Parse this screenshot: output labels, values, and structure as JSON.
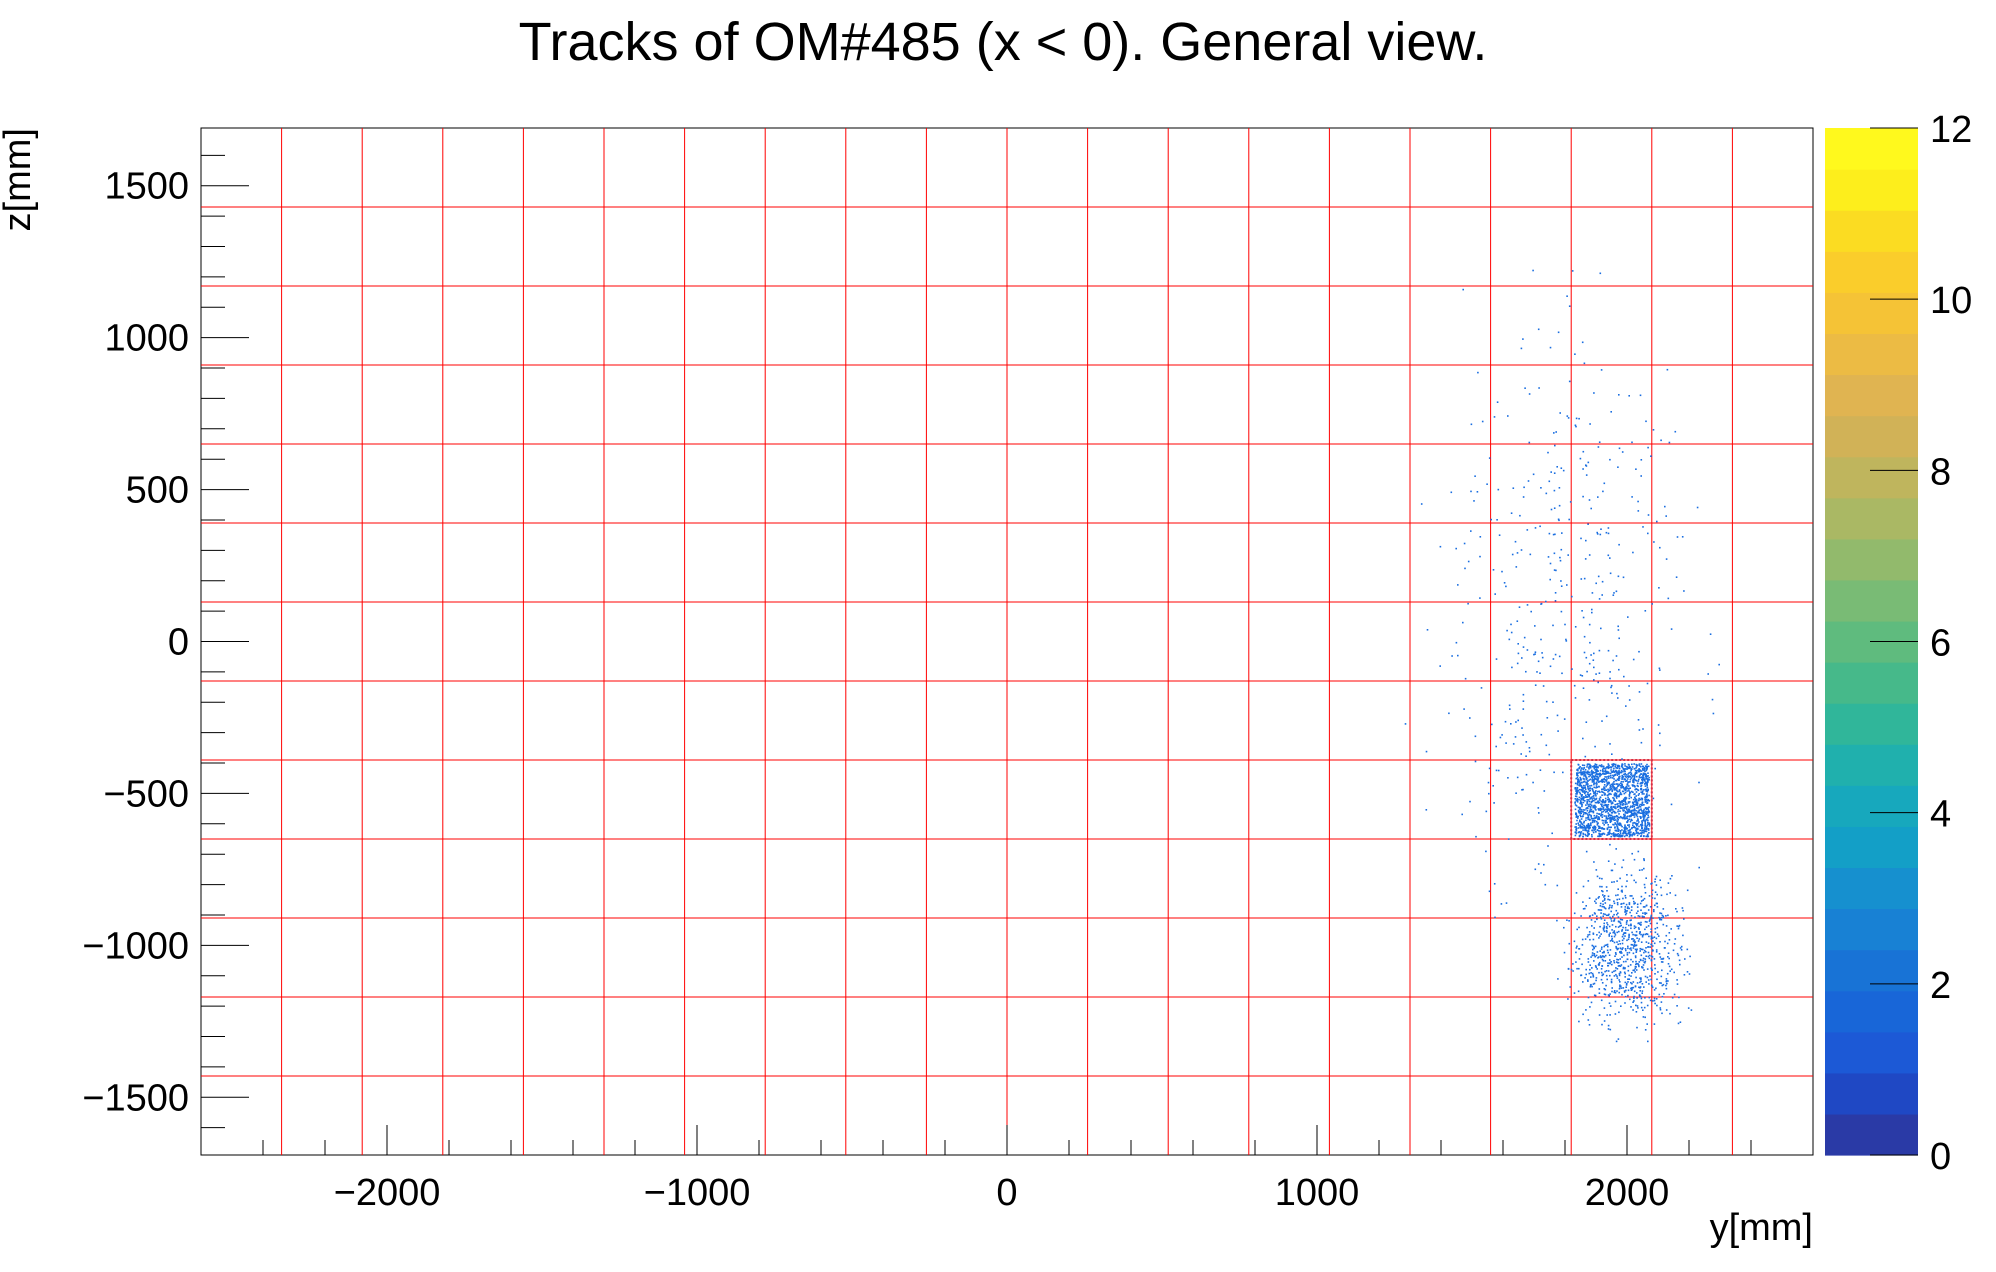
{
  "chart_data": {
    "type": "heatmap",
    "title": "Tracks of OM#485 (x < 0). General view.",
    "xlabel": "y[mm]",
    "ylabel": "z[mm]",
    "xlim": [
      -2600,
      2600
    ],
    "ylim": [
      -1690,
      1690
    ],
    "x_ticks": [
      -2000,
      -1000,
      0,
      1000,
      2000
    ],
    "x_tick_labels": [
      "−2000",
      "−1000",
      "0",
      "1000",
      "2000"
    ],
    "y_ticks": [
      1500,
      1000,
      500,
      0,
      -500,
      -1000,
      -1500
    ],
    "y_tick_labels": [
      "1500",
      "1000",
      "500",
      "0",
      "−500",
      "−1000",
      "−1500"
    ],
    "colorbar": {
      "range": [
        0,
        12
      ],
      "ticks": [
        0,
        2,
        4,
        6,
        8,
        10,
        12
      ],
      "tick_labels": [
        "0",
        "2",
        "4",
        "6",
        "8",
        "10",
        "12"
      ],
      "colors": [
        "#2a3aa6",
        "#1f48c4",
        "#1c59d6",
        "#1866d8",
        "#1873d6",
        "#1881d4",
        "#1690cf",
        "#139fc7",
        "#17a8bd",
        "#20b0ad",
        "#30b69a",
        "#46b98a",
        "#5fbb7e",
        "#79bb75",
        "#92ba6c",
        "#aab864",
        "#bfb55d",
        "#d1b257",
        "#e0b451",
        "#ecbb44",
        "#f5c336",
        "#facd2b",
        "#fbdc22",
        "#fdee1c",
        "#fff91d"
      ]
    },
    "grid": true,
    "grid_color": "#ff0000",
    "grid_x": [
      -2340,
      -2080,
      -1820,
      -1560,
      -1300,
      -1040,
      -780,
      -520,
      -260,
      0,
      260,
      520,
      780,
      1040,
      1300,
      1560,
      1820,
      2080,
      2340
    ],
    "grid_y": [
      1430,
      1170,
      910,
      650,
      390,
      130,
      -130,
      -390,
      -650,
      -910,
      -1170,
      -1430
    ],
    "highlight_cell": {
      "y_range": [
        1820,
        2080
      ],
      "z_range": [
        -650,
        -390
      ]
    },
    "point_color": "#1a6ee0",
    "point_clusters": [
      {
        "y_center": 1950,
        "z_center": -520,
        "y_halfwidth": 120,
        "z_halfwidth": 120,
        "density": "high"
      },
      {
        "y_center": 2000,
        "z_center": -1000,
        "y_halfwidth": 250,
        "z_halfwidth": 350,
        "density": "medium"
      },
      {
        "y_center": 1800,
        "z_center": 100,
        "y_halfwidth": 600,
        "z_halfwidth": 1400,
        "density": "low"
      }
    ]
  }
}
